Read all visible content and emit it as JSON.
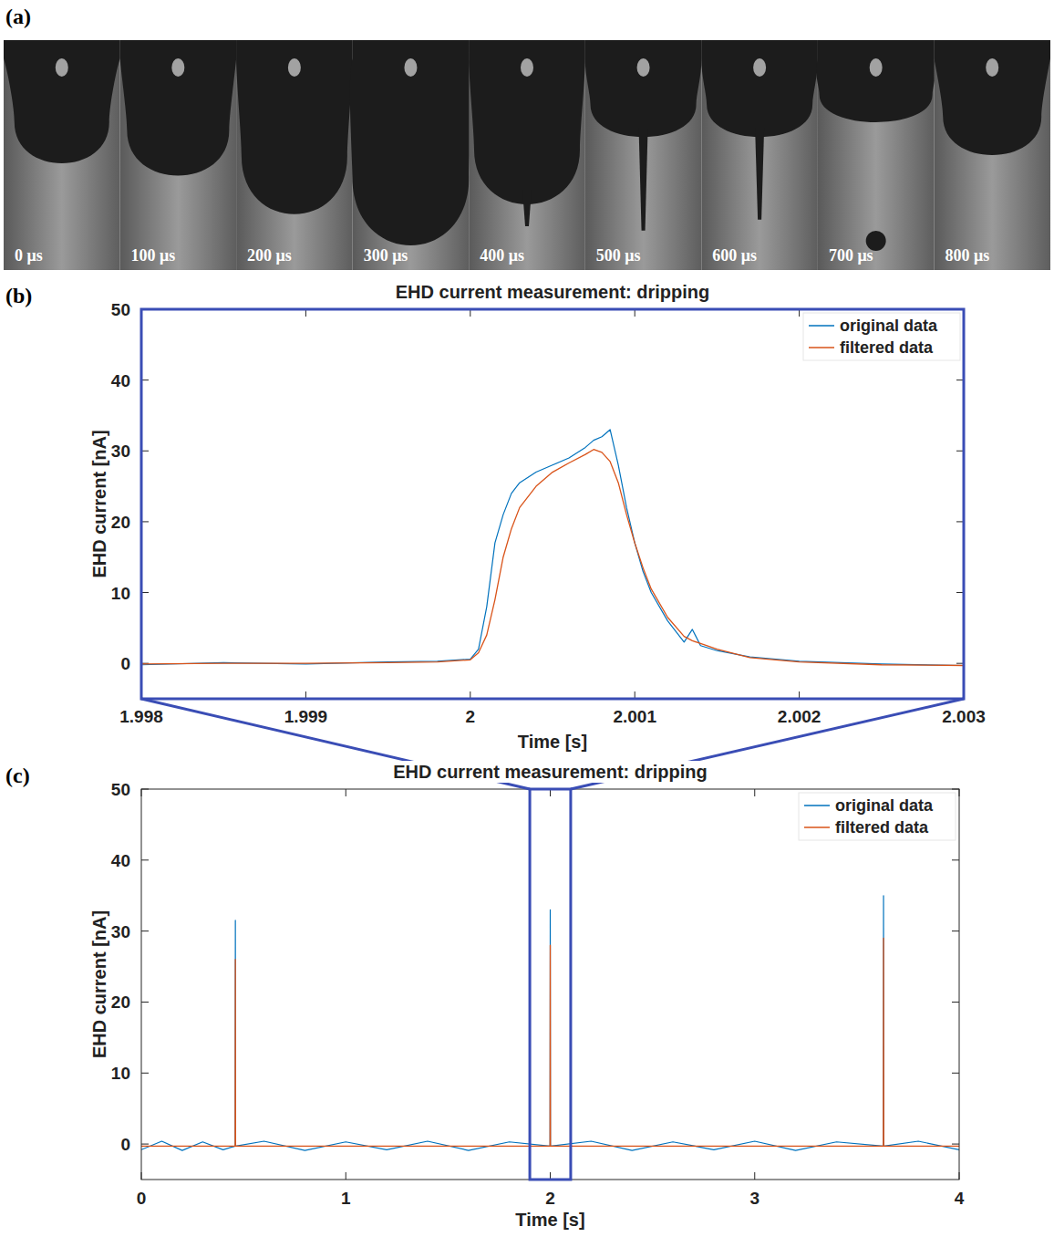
{
  "image_strip": {
    "panel_label": "(a)",
    "frames": [
      "0 μs",
      "100 μs",
      "200 μs",
      "300 μs",
      "400 μs",
      "500 μs",
      "600 μs",
      "700 μs",
      "800 μs"
    ]
  },
  "chart_data": [
    {
      "type": "line",
      "panel_label": "(b)",
      "title": "EHD current measurement: dripping",
      "x_label": "Time [s]",
      "y_label": "EHD current [nA]",
      "x": [
        1.998,
        1.9985,
        1.999,
        1.9995,
        1.9998,
        2.0,
        2.00005,
        2.0001,
        2.00015,
        2.0002,
        2.00025,
        2.0003,
        2.0004,
        2.0005,
        2.0006,
        2.0007,
        2.00075,
        2.0008,
        2.00085,
        2.0009,
        2.00095,
        2.001,
        2.00105,
        2.0011,
        2.0012,
        2.0013,
        2.00135,
        2.0014,
        2.0015,
        2.0017,
        2.002,
        2.0025,
        2.003
      ],
      "series": [
        {
          "name": "original data",
          "color": "#0072bd",
          "values": [
            -0.2,
            0.1,
            -0.1,
            0.2,
            0.3,
            0.6,
            2,
            8,
            17,
            21,
            24,
            25.5,
            27,
            28,
            29,
            30.5,
            31.5,
            32,
            33,
            28,
            22,
            17,
            13,
            10,
            6,
            3,
            4.8,
            2.5,
            1.8,
            0.9,
            0.3,
            -0.1,
            -0.3
          ]
        },
        {
          "name": "filtered data",
          "color": "#d95319",
          "values": [
            -0.1,
            0,
            0,
            0.1,
            0.2,
            0.5,
            1.5,
            4,
            9,
            15,
            19,
            22,
            25,
            27,
            28.3,
            29.5,
            30.2,
            29.8,
            28.5,
            25.5,
            21,
            17,
            13.5,
            10.5,
            6.5,
            3.8,
            3.2,
            2.8,
            2,
            0.8,
            0.2,
            -0.2,
            -0.3
          ]
        }
      ],
      "xlim": [
        1.998,
        2.003
      ],
      "xticks": [
        1.998,
        1.999,
        2,
        2.001,
        2.002,
        2.003
      ],
      "ylim": [
        -5,
        50
      ],
      "yticks": [
        0,
        10,
        20,
        30,
        40,
        50
      ],
      "grid": false,
      "legend": "northeast"
    },
    {
      "type": "line",
      "panel_label": "(c)",
      "title": "EHD current measurement: dripping",
      "x_label": "Time [s]",
      "y_label": "EHD current [nA]",
      "x": [
        0,
        0.1,
        0.2,
        0.3,
        0.4,
        0.459,
        0.46,
        0.461,
        0.6,
        0.8,
        1.0,
        1.2,
        1.4,
        1.6,
        1.8,
        1.999,
        2.0,
        2.001,
        2.2,
        2.4,
        2.6,
        2.8,
        3.0,
        3.2,
        3.4,
        3.629,
        3.63,
        3.631,
        3.8,
        4.0
      ],
      "series": [
        {
          "name": "original data",
          "color": "#0072bd",
          "values": [
            -0.8,
            0.4,
            -0.9,
            0.3,
            -0.8,
            -0.3,
            31.5,
            -0.3,
            0.4,
            -0.9,
            0.3,
            -0.8,
            0.4,
            -0.9,
            0.3,
            -0.3,
            33,
            -0.3,
            0.4,
            -0.9,
            0.3,
            -0.8,
            0.4,
            -0.9,
            0.3,
            -0.3,
            35,
            -0.3,
            0.4,
            -0.8
          ]
        },
        {
          "name": "filtered data",
          "color": "#d95319",
          "values": [
            -0.3,
            -0.3,
            -0.3,
            -0.3,
            -0.3,
            -0.3,
            26,
            -0.3,
            -0.3,
            -0.3,
            -0.3,
            -0.3,
            -0.3,
            -0.3,
            -0.3,
            -0.3,
            28,
            -0.3,
            -0.3,
            -0.3,
            -0.3,
            -0.3,
            -0.3,
            -0.3,
            -0.3,
            -0.3,
            29,
            -0.3,
            -0.3,
            -0.3
          ]
        }
      ],
      "xlim": [
        0,
        4
      ],
      "xticks": [
        0,
        1,
        2,
        3,
        4
      ],
      "ylim": [
        -5,
        50
      ],
      "yticks": [
        0,
        10,
        20,
        30,
        40,
        50
      ],
      "zoom_xlim": [
        1.9,
        2.1
      ],
      "grid": false,
      "legend": "northeast"
    }
  ]
}
